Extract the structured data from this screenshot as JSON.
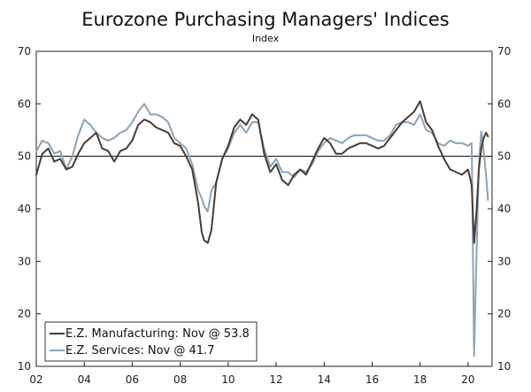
{
  "chart_data": {
    "type": "line",
    "title": "Eurozone Purchasing Managers' Indices",
    "subtitle": "Index",
    "xlabel": "",
    "ylabel": "",
    "ylim": [
      10,
      70
    ],
    "xlim": [
      2002,
      2021
    ],
    "y_ticks": [
      10,
      20,
      30,
      40,
      50,
      60,
      70
    ],
    "y_tick_labels": [
      "10",
      "20",
      "30",
      "40",
      "50",
      "60",
      "70"
    ],
    "x_ticks": [
      2002,
      2004,
      2006,
      2008,
      2010,
      2012,
      2014,
      2016,
      2018,
      2020
    ],
    "x_tick_labels": [
      "02",
      "04",
      "06",
      "08",
      "10",
      "12",
      "14",
      "16",
      "18",
      "20"
    ],
    "reference_line": 50,
    "legend_position": "bottom-left",
    "series": [
      {
        "name": "E.Z. Manufacturing: Nov @ 53.8",
        "color": "#4a3b33",
        "x": [
          2002.0,
          2002.25,
          2002.5,
          2002.75,
          2003.0,
          2003.25,
          2003.5,
          2003.75,
          2004.0,
          2004.25,
          2004.5,
          2004.75,
          2005.0,
          2005.25,
          2005.5,
          2005.75,
          2006.0,
          2006.25,
          2006.5,
          2006.75,
          2007.0,
          2007.25,
          2007.5,
          2007.75,
          2008.0,
          2008.25,
          2008.5,
          2008.75,
          2008.9,
          2009.0,
          2009.15,
          2009.3,
          2009.5,
          2009.75,
          2010.0,
          2010.25,
          2010.5,
          2010.75,
          2011.0,
          2011.25,
          2011.5,
          2011.75,
          2012.0,
          2012.25,
          2012.5,
          2012.75,
          2013.0,
          2013.25,
          2013.5,
          2013.75,
          2014.0,
          2014.25,
          2014.5,
          2014.75,
          2015.0,
          2015.25,
          2015.5,
          2015.75,
          2016.0,
          2016.25,
          2016.5,
          2016.75,
          2017.0,
          2017.25,
          2017.5,
          2017.75,
          2018.0,
          2018.25,
          2018.5,
          2018.75,
          2019.0,
          2019.25,
          2019.5,
          2019.75,
          2020.0,
          2020.15,
          2020.25,
          2020.35,
          2020.45,
          2020.55,
          2020.65,
          2020.75,
          2020.83
        ],
        "values": [
          46.5,
          50.5,
          51.5,
          49.0,
          49.5,
          47.5,
          48.0,
          50.5,
          52.5,
          53.5,
          54.5,
          51.5,
          51.0,
          49.0,
          51.0,
          51.5,
          53.0,
          56.0,
          57.0,
          56.5,
          55.5,
          55.0,
          54.5,
          52.5,
          52.0,
          50.0,
          47.5,
          41.0,
          35.5,
          34.0,
          33.5,
          36.0,
          45.0,
          49.5,
          52.0,
          55.5,
          57.0,
          56.0,
          58.0,
          57.0,
          50.5,
          47.0,
          48.5,
          45.5,
          44.5,
          46.5,
          47.5,
          46.5,
          49.0,
          51.5,
          53.5,
          52.5,
          50.5,
          50.5,
          51.5,
          52.0,
          52.5,
          52.5,
          52.0,
          51.5,
          52.0,
          53.5,
          55.0,
          56.5,
          57.5,
          58.5,
          60.5,
          56.5,
          55.0,
          52.0,
          49.5,
          47.5,
          47.0,
          46.5,
          47.5,
          44.5,
          33.5,
          39.5,
          47.5,
          51.5,
          53.5,
          54.5,
          53.8
        ]
      },
      {
        "name": "E.Z. Services: Nov @ 41.7",
        "color": "#8ba3b5",
        "x": [
          2002.0,
          2002.25,
          2002.5,
          2002.75,
          2003.0,
          2003.25,
          2003.5,
          2003.75,
          2004.0,
          2004.25,
          2004.5,
          2004.75,
          2005.0,
          2005.25,
          2005.5,
          2005.75,
          2006.0,
          2006.25,
          2006.5,
          2006.75,
          2007.0,
          2007.25,
          2007.5,
          2007.75,
          2008.0,
          2008.25,
          2008.5,
          2008.75,
          2008.9,
          2009.0,
          2009.15,
          2009.3,
          2009.5,
          2009.75,
          2010.0,
          2010.25,
          2010.5,
          2010.75,
          2011.0,
          2011.25,
          2011.5,
          2011.75,
          2012.0,
          2012.25,
          2012.5,
          2012.75,
          2013.0,
          2013.25,
          2013.5,
          2013.75,
          2014.0,
          2014.25,
          2014.5,
          2014.75,
          2015.0,
          2015.25,
          2015.5,
          2015.75,
          2016.0,
          2016.25,
          2016.5,
          2016.75,
          2017.0,
          2017.25,
          2017.5,
          2017.75,
          2018.0,
          2018.25,
          2018.5,
          2018.75,
          2019.0,
          2019.25,
          2019.5,
          2019.75,
          2020.0,
          2020.15,
          2020.25,
          2020.35,
          2020.45,
          2020.55,
          2020.65,
          2020.75,
          2020.83
        ],
        "values": [
          51.0,
          53.0,
          52.5,
          50.5,
          51.0,
          47.5,
          50.0,
          54.0,
          57.0,
          56.0,
          54.5,
          53.5,
          53.0,
          53.5,
          54.5,
          55.0,
          56.5,
          58.5,
          60.0,
          58.0,
          58.0,
          57.5,
          56.5,
          53.5,
          52.5,
          51.5,
          48.5,
          43.5,
          42.0,
          40.5,
          39.5,
          43.5,
          45.0,
          49.5,
          51.5,
          54.5,
          56.0,
          54.5,
          56.5,
          56.5,
          51.5,
          48.0,
          49.5,
          47.0,
          47.0,
          46.0,
          47.5,
          47.0,
          48.5,
          51.0,
          52.5,
          53.5,
          53.0,
          52.5,
          53.5,
          54.0,
          54.0,
          54.0,
          53.5,
          53.0,
          53.0,
          54.0,
          56.0,
          56.5,
          56.5,
          56.0,
          58.0,
          55.0,
          54.5,
          52.5,
          52.0,
          53.0,
          52.5,
          52.5,
          52.0,
          52.5,
          12.0,
          31.0,
          48.5,
          54.7,
          51.0,
          46.5,
          41.7
        ]
      }
    ],
    "colors": {
      "axis": "#222222",
      "reference_line": "#000000",
      "legend_border": "#333333"
    }
  }
}
